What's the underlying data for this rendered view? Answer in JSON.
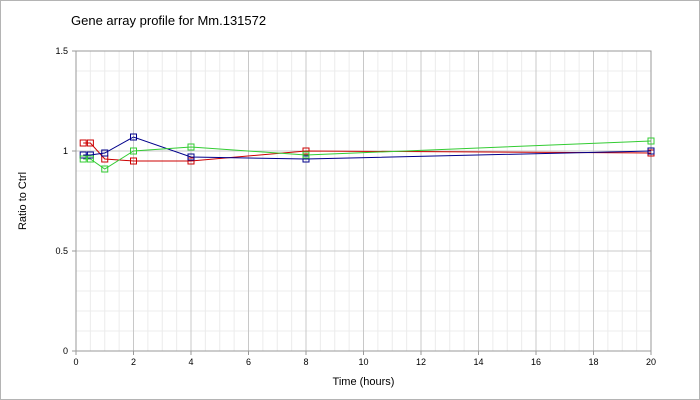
{
  "chart_data": {
    "type": "line",
    "title": "Gene array profile for Mm.131572",
    "xlabel": "Time (hours)",
    "ylabel": "Ratio to Ctrl",
    "xlim": [
      0,
      20
    ],
    "ylim": [
      0,
      1.5
    ],
    "x_ticks": [
      "0",
      "2",
      "4",
      "6",
      "8",
      "10",
      "12",
      "14",
      "16",
      "18",
      "20"
    ],
    "y_ticks": [
      "0",
      "0.5",
      "1",
      "1.5"
    ],
    "grid": true,
    "legend": "none",
    "series": [
      {
        "color": "#cc0000",
        "x": [
          0.25,
          0.5,
          1,
          2,
          4,
          8,
          20
        ],
        "y": [
          1.04,
          1.04,
          0.96,
          0.95,
          0.95,
          1.0,
          0.99
        ]
      },
      {
        "color": "#00008b",
        "x": [
          0.25,
          0.5,
          1,
          2,
          4,
          8,
          20
        ],
        "y": [
          0.98,
          0.98,
          0.99,
          1.07,
          0.97,
          0.96,
          1.0
        ]
      },
      {
        "color": "#33cc33",
        "x": [
          0.25,
          0.5,
          1,
          2,
          4,
          8,
          20
        ],
        "y": [
          0.96,
          0.96,
          0.91,
          1.0,
          1.02,
          0.98,
          1.05
        ]
      }
    ]
  }
}
